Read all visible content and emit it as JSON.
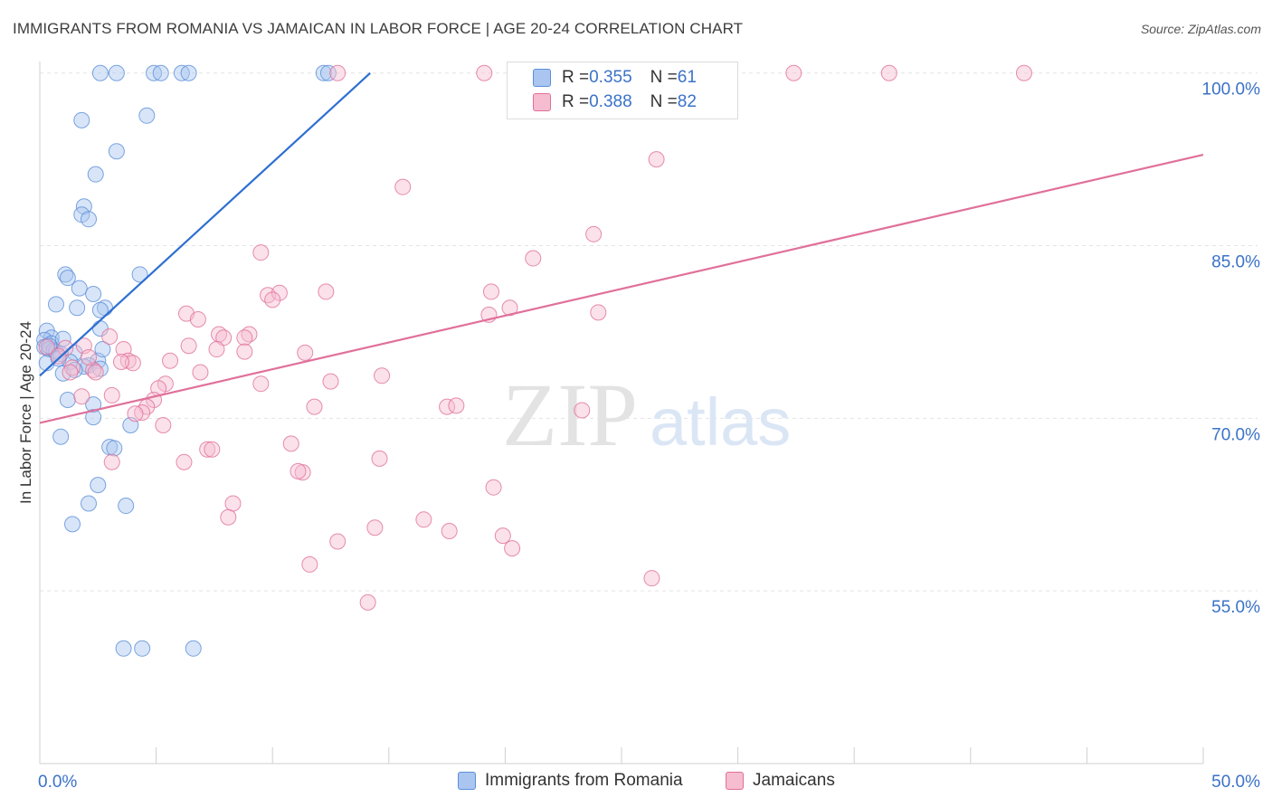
{
  "title": "IMMIGRANTS FROM ROMANIA VS JAMAICAN IN LABOR FORCE | AGE 20-24 CORRELATION CHART",
  "source": "Source: ZipAtlas.com",
  "watermark": {
    "zip": "ZIP",
    "atlas": "atlas"
  },
  "legend_stats": [
    {
      "r_label": "R = ",
      "r_value": "0.355",
      "n_label": "N = ",
      "n_value": "61"
    },
    {
      "r_label": "R = ",
      "r_value": "0.388",
      "n_label": "N = ",
      "n_value": "82"
    }
  ],
  "chart_data": {
    "type": "scatter",
    "xlabel": "",
    "ylabel": "In Labor Force | Age 20-24",
    "xlim": [
      0,
      50
    ],
    "ylim": [
      40,
      101
    ],
    "x_tick_labels": [
      {
        "value": 0,
        "label": "0.0%"
      },
      {
        "value": 50,
        "label": "50.0%"
      }
    ],
    "y_tick_labels": [
      {
        "value": 100,
        "label": "100.0%"
      },
      {
        "value": 85,
        "label": "85.0%"
      },
      {
        "value": 70,
        "label": "70.0%"
      },
      {
        "value": 55,
        "label": "55.0%"
      }
    ],
    "grid": "horizontal dashed",
    "legend_position": "bottom-center",
    "series": [
      {
        "name": "Immigrants from Romania",
        "color": "#5b8fd8",
        "fill": "#a9c5f0",
        "trend": {
          "x": [
            0,
            14.2
          ],
          "y": [
            73.7,
            100
          ]
        },
        "points": [
          [
            2.6,
            100
          ],
          [
            3.3,
            100
          ],
          [
            4.9,
            100
          ],
          [
            5.2,
            100
          ],
          [
            6.1,
            100
          ],
          [
            6.4,
            100
          ],
          [
            12.2,
            100
          ],
          [
            12.4,
            100
          ],
          [
            4.6,
            96.3
          ],
          [
            1.8,
            95.9
          ],
          [
            3.3,
            93.2
          ],
          [
            2.4,
            91.2
          ],
          [
            1.9,
            88.4
          ],
          [
            1.8,
            87.7
          ],
          [
            2.1,
            87.3
          ],
          [
            1.1,
            82.5
          ],
          [
            1.2,
            82.2
          ],
          [
            4.3,
            82.5
          ],
          [
            1.7,
            81.3
          ],
          [
            2.3,
            80.8
          ],
          [
            0.7,
            79.9
          ],
          [
            1.6,
            79.6
          ],
          [
            2.8,
            79.6
          ],
          [
            2.6,
            79.4
          ],
          [
            2.6,
            77.8
          ],
          [
            0.3,
            77.6
          ],
          [
            0.5,
            77.0
          ],
          [
            0.2,
            76.8
          ],
          [
            0.5,
            76.5
          ],
          [
            0.2,
            76.2
          ],
          [
            0.4,
            76.0
          ],
          [
            0.6,
            75.9
          ],
          [
            0.7,
            75.8
          ],
          [
            1.5,
            75.7
          ],
          [
            0.9,
            75.6
          ],
          [
            0.3,
            74.8
          ],
          [
            2.5,
            75.0
          ],
          [
            1.3,
            74.9
          ],
          [
            2.1,
            74.6
          ],
          [
            1.0,
            73.9
          ],
          [
            1.2,
            71.6
          ],
          [
            2.3,
            71.2
          ],
          [
            2.3,
            70.1
          ],
          [
            3.9,
            69.4
          ],
          [
            0.9,
            68.4
          ],
          [
            3.0,
            67.5
          ],
          [
            3.2,
            67.4
          ],
          [
            2.5,
            64.2
          ],
          [
            2.1,
            62.6
          ],
          [
            3.7,
            62.4
          ],
          [
            1.4,
            60.8
          ],
          [
            3.6,
            50.0
          ],
          [
            4.4,
            50.0
          ],
          [
            6.6,
            50.0
          ],
          [
            2.6,
            74.3
          ],
          [
            1.0,
            76.9
          ],
          [
            0.8,
            75.2
          ],
          [
            0.4,
            76.3
          ],
          [
            1.9,
            74.5
          ],
          [
            2.7,
            76.0
          ],
          [
            1.5,
            74.2
          ]
        ]
      },
      {
        "name": "Jamaicans",
        "color": "#e0709a",
        "fill": "#f6bcd0",
        "trend": {
          "x": [
            0,
            50
          ],
          "y": [
            69.6,
            92.9
          ]
        },
        "points": [
          [
            12.8,
            100
          ],
          [
            19.1,
            100
          ],
          [
            27.9,
            100
          ],
          [
            28.2,
            100
          ],
          [
            32.4,
            100
          ],
          [
            36.5,
            100
          ],
          [
            42.3,
            100
          ],
          [
            26.5,
            92.5
          ],
          [
            15.6,
            90.1
          ],
          [
            23.8,
            86.0
          ],
          [
            9.5,
            84.4
          ],
          [
            21.2,
            83.9
          ],
          [
            12.3,
            81.0
          ],
          [
            19.4,
            81.0
          ],
          [
            9.8,
            80.7
          ],
          [
            10.3,
            80.9
          ],
          [
            10.0,
            80.3
          ],
          [
            20.2,
            79.6
          ],
          [
            24.0,
            79.2
          ],
          [
            19.3,
            79.0
          ],
          [
            6.3,
            79.1
          ],
          [
            6.8,
            78.6
          ],
          [
            9.0,
            77.3
          ],
          [
            7.7,
            77.3
          ],
          [
            7.9,
            77.0
          ],
          [
            8.8,
            77.0
          ],
          [
            3.0,
            77.1
          ],
          [
            6.4,
            76.3
          ],
          [
            1.9,
            76.3
          ],
          [
            1.1,
            76.1
          ],
          [
            3.6,
            76.0
          ],
          [
            0.3,
            76.2
          ],
          [
            7.6,
            76.0
          ],
          [
            11.4,
            75.7
          ],
          [
            8.8,
            75.8
          ],
          [
            5.6,
            75.0
          ],
          [
            3.8,
            75.0
          ],
          [
            4.0,
            74.8
          ],
          [
            1.4,
            74.4
          ],
          [
            2.3,
            74.2
          ],
          [
            1.3,
            74.0
          ],
          [
            2.4,
            74.0
          ],
          [
            6.9,
            74.0
          ],
          [
            14.7,
            73.7
          ],
          [
            12.5,
            73.2
          ],
          [
            9.5,
            73.0
          ],
          [
            5.4,
            73.0
          ],
          [
            5.1,
            72.6
          ],
          [
            3.1,
            72.0
          ],
          [
            1.8,
            71.9
          ],
          [
            4.9,
            71.6
          ],
          [
            4.6,
            71.0
          ],
          [
            11.8,
            71.0
          ],
          [
            17.5,
            71.0
          ],
          [
            17.9,
            71.1
          ],
          [
            23.3,
            70.7
          ],
          [
            4.4,
            70.5
          ],
          [
            4.1,
            70.4
          ],
          [
            5.3,
            69.4
          ],
          [
            10.8,
            67.8
          ],
          [
            7.2,
            67.3
          ],
          [
            7.4,
            67.3
          ],
          [
            14.6,
            66.5
          ],
          [
            6.2,
            66.2
          ],
          [
            11.3,
            65.3
          ],
          [
            11.1,
            65.4
          ],
          [
            3.1,
            66.2
          ],
          [
            19.5,
            64.0
          ],
          [
            8.3,
            62.6
          ],
          [
            8.1,
            61.4
          ],
          [
            16.5,
            61.2
          ],
          [
            14.4,
            60.5
          ],
          [
            17.6,
            60.2
          ],
          [
            19.9,
            59.8
          ],
          [
            12.8,
            59.3
          ],
          [
            20.3,
            58.7
          ],
          [
            11.6,
            57.3
          ],
          [
            26.3,
            56.1
          ],
          [
            14.1,
            54.0
          ],
          [
            3.5,
            74.9
          ],
          [
            0.8,
            75.4
          ],
          [
            2.1,
            75.3
          ]
        ]
      }
    ]
  }
}
